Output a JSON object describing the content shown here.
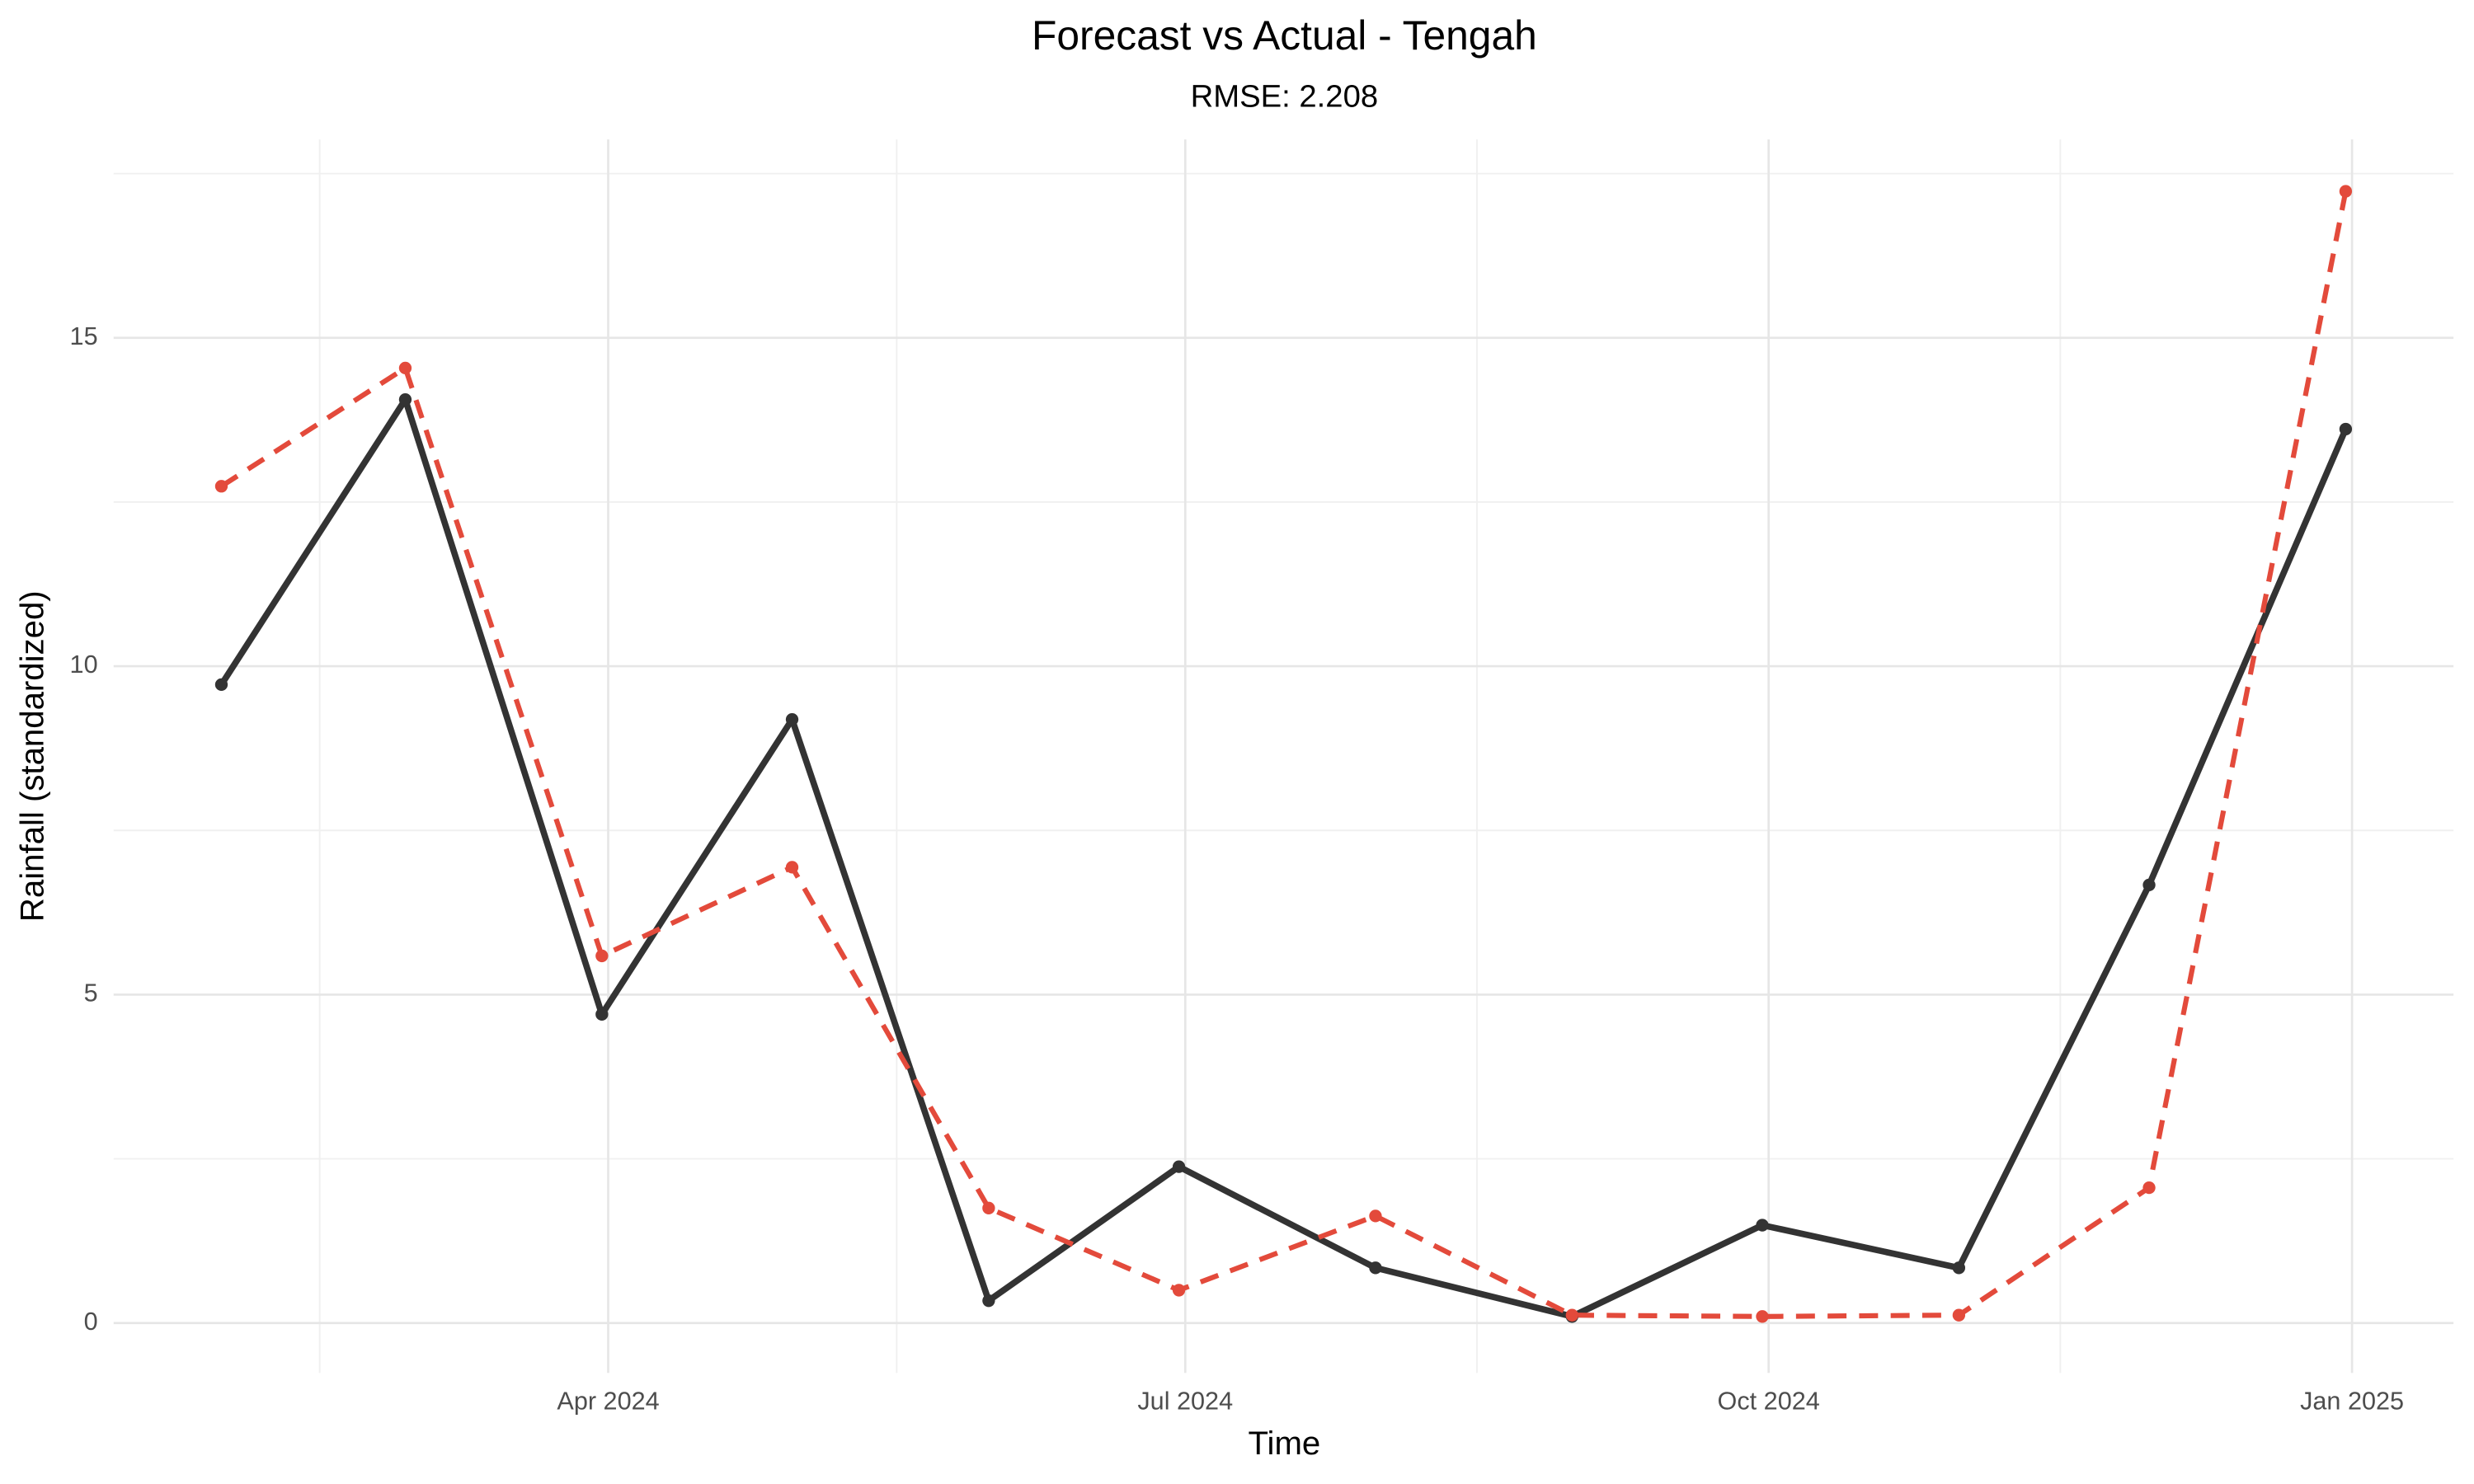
{
  "chart_data": {
    "type": "line",
    "title": "Forecast vs Actual - Tengah",
    "subtitle": "RMSE: 2.208",
    "x_label": "Time",
    "y_label": "Rainfall (standardized)",
    "x": [
      "2024-01",
      "2024-02",
      "2024-03",
      "2024-04",
      "2024-05",
      "2024-06",
      "2024-07",
      "2024-08",
      "2024-09",
      "2024-10",
      "2024-11",
      "2024-12"
    ],
    "series": [
      {
        "color": "#333333",
        "dashed": false,
        "values": [
          9.72,
          14.06,
          4.7,
          9.19,
          0.34,
          2.38,
          0.84,
          0.1,
          1.49,
          0.84,
          6.67,
          13.61
        ]
      },
      {
        "color": "#e34a3b",
        "dashed": true,
        "values": [
          12.74,
          14.54,
          5.59,
          6.94,
          1.75,
          0.5,
          1.63,
          0.12,
          0.1,
          0.12,
          2.06,
          17.23
        ]
      }
    ],
    "xticks": [
      {
        "value": "2024-04",
        "label": "Apr 2024"
      },
      {
        "value": "2024-07",
        "label": "Jul 2024"
      },
      {
        "value": "2024-10",
        "label": "Oct 2024"
      },
      {
        "value": "2025-01",
        "label": "Jan 2025"
      }
    ],
    "ylim": [
      -0.76,
      18.02
    ],
    "yticks": [
      0,
      5,
      10,
      15
    ],
    "grid": true
  }
}
